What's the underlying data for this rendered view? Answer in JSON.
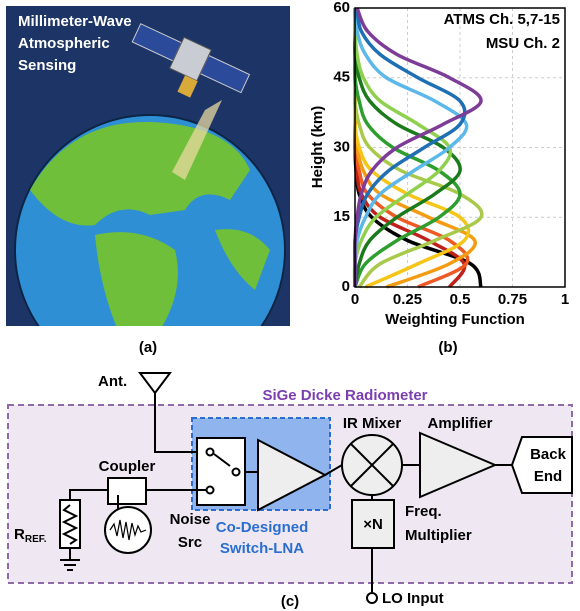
{
  "illustration": {
    "title_lines": [
      "Millimeter-Wave",
      "Atmospheric",
      "Sensing"
    ],
    "caption": "(a)"
  },
  "chart_data": {
    "type": "line",
    "caption": "(b)",
    "xlabel": "Weighting Function",
    "ylabel": "Height (km)",
    "annotations": [
      "ATMS Ch. 5,7-15",
      "MSU Ch. 2"
    ],
    "xlim": [
      0,
      1
    ],
    "xticks": [
      0,
      0.25,
      0.5,
      0.75,
      1
    ],
    "ylim": [
      0,
      60
    ],
    "yticks": [
      0,
      15,
      30,
      45,
      60
    ],
    "grid": true,
    "y": [
      0,
      5,
      10,
      15,
      20,
      25,
      30,
      35,
      40,
      45,
      50,
      55,
      60
    ],
    "series": [
      {
        "color": "#000000",
        "values": [
          0.6,
          0.55,
          0.25,
          0.08,
          0.02,
          0.005,
          0,
          0,
          0,
          0,
          0,
          0,
          0
        ]
      },
      {
        "color": "#c0201a",
        "values": [
          0.45,
          0.52,
          0.35,
          0.12,
          0.03,
          0.01,
          0,
          0,
          0,
          0,
          0,
          0,
          0
        ]
      },
      {
        "color": "#ee5a24",
        "values": [
          0.3,
          0.53,
          0.45,
          0.2,
          0.06,
          0.02,
          0,
          0,
          0,
          0,
          0,
          0,
          0
        ]
      },
      {
        "color": "#f39c12",
        "values": [
          0.15,
          0.45,
          0.57,
          0.35,
          0.12,
          0.04,
          0.01,
          0,
          0,
          0,
          0,
          0,
          0
        ]
      },
      {
        "color": "#f5c518",
        "values": [
          0.05,
          0.3,
          0.52,
          0.5,
          0.25,
          0.08,
          0.02,
          0,
          0,
          0,
          0,
          0,
          0
        ]
      },
      {
        "color": "#a8c94a",
        "values": [
          0.02,
          0.12,
          0.38,
          0.6,
          0.5,
          0.22,
          0.07,
          0.02,
          0,
          0,
          0,
          0,
          0
        ]
      },
      {
        "color": "#2e9e2e",
        "values": [
          0,
          0.05,
          0.2,
          0.4,
          0.5,
          0.4,
          0.18,
          0.06,
          0.02,
          0,
          0,
          0,
          0
        ]
      },
      {
        "color": "#1b7a1b",
        "values": [
          0,
          0.02,
          0.07,
          0.2,
          0.38,
          0.5,
          0.42,
          0.2,
          0.07,
          0.02,
          0,
          0,
          0
        ]
      },
      {
        "color": "#8fd14f",
        "values": [
          0,
          0,
          0.03,
          0.1,
          0.25,
          0.4,
          0.45,
          0.3,
          0.12,
          0.04,
          0.01,
          0,
          0
        ]
      },
      {
        "color": "#5bb8e8",
        "values": [
          0,
          0,
          0.01,
          0.05,
          0.12,
          0.28,
          0.45,
          0.53,
          0.38,
          0.15,
          0.05,
          0.01,
          0
        ]
      },
      {
        "color": "#1f6fb5",
        "values": [
          0,
          0,
          0,
          0.02,
          0.06,
          0.16,
          0.33,
          0.5,
          0.5,
          0.3,
          0.12,
          0.03,
          0.01
        ]
      },
      {
        "color": "#7d3c98",
        "values": [
          0,
          0,
          0,
          0.01,
          0.03,
          0.08,
          0.2,
          0.42,
          0.6,
          0.45,
          0.2,
          0.06,
          0.01
        ]
      }
    ]
  },
  "diagram": {
    "caption": "(c)",
    "title": "SiGe Dicke Radiometer",
    "antenna": "Ant.",
    "mixer": "IR Mixer",
    "amplifier": "Amplifier",
    "backend_lines": [
      "Back",
      "End"
    ],
    "coupler": "Coupler",
    "noise_lines": [
      "Noise",
      "Src"
    ],
    "resistor": {
      "label": "R",
      "subscript": "REF."
    },
    "lna_lines": [
      "Co-Designed",
      "Switch-LNA"
    ],
    "multiplier": "×N",
    "multiplier_lines": [
      "Freq.",
      "Multiplier"
    ],
    "lo": "LO Input"
  }
}
